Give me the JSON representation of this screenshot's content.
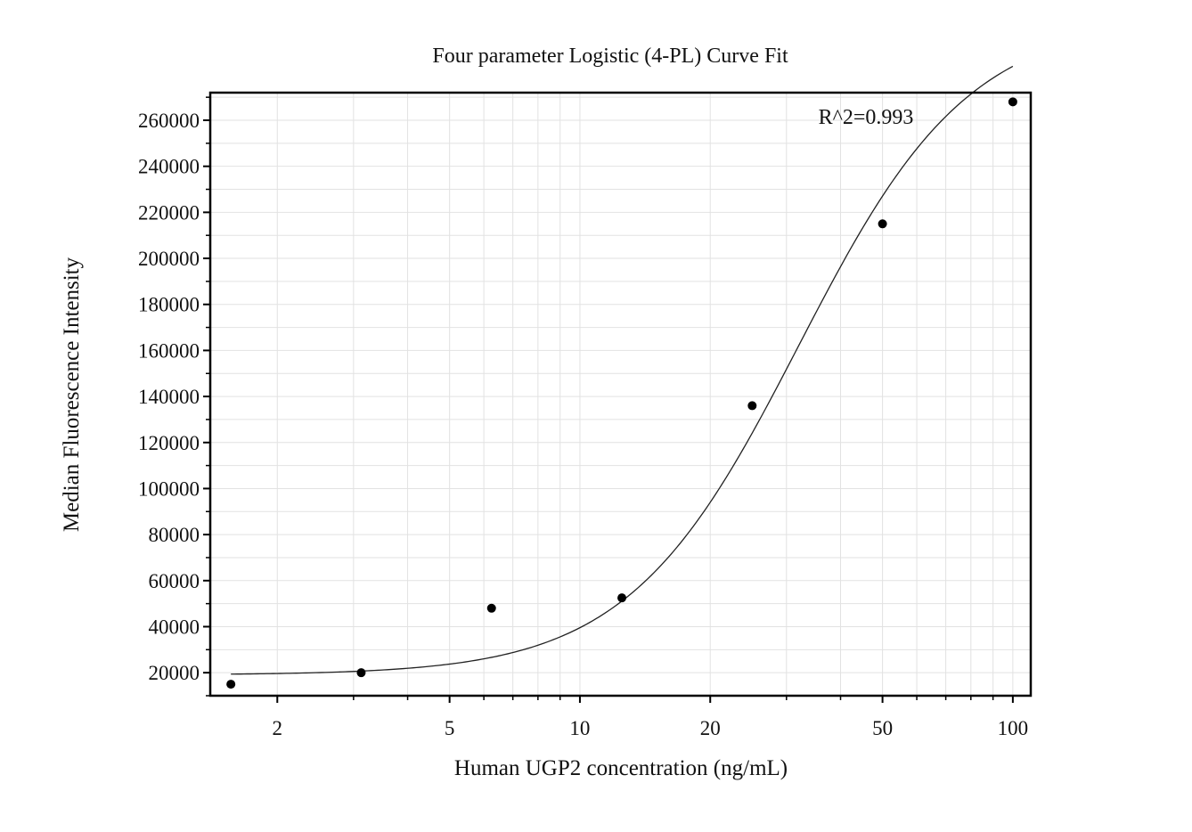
{
  "chart_data": {
    "type": "scatter",
    "title": "Four parameter Logistic (4-PL) Curve Fit",
    "xlabel": "Human UGP2 concentration (ng/mL)",
    "ylabel": "Median Fluorescence Intensity",
    "x_scale": "log",
    "xlim": [
      1.4,
      110
    ],
    "ylim": [
      10000,
      272000
    ],
    "grid": true,
    "x_ticks": [
      2,
      5,
      10,
      20,
      50,
      100
    ],
    "x_tick_labels": [
      "2",
      "5",
      "10",
      "20",
      "50",
      "100"
    ],
    "y_ticks": [
      20000,
      40000,
      60000,
      80000,
      100000,
      120000,
      140000,
      160000,
      180000,
      200000,
      220000,
      240000,
      260000
    ],
    "y_tick_labels": [
      "20000",
      "40000",
      "60000",
      "80000",
      "100000",
      "120000",
      "140000",
      "160000",
      "180000",
      "200000",
      "220000",
      "240000",
      "260000"
    ],
    "points": {
      "x": [
        1.5625,
        3.125,
        6.25,
        12.5,
        25,
        50,
        100
      ],
      "y": [
        15000,
        20000,
        48000,
        52500,
        136000,
        215000,
        268000
      ]
    },
    "fit_curve": {
      "model": "4PL",
      "a": 19000,
      "d": 305000,
      "c": 32,
      "b": 2.2,
      "x_range": [
        1.5625,
        100
      ]
    },
    "annotations": [
      {
        "text": "R^2=0.993",
        "x": 50,
        "y": 260000
      }
    ],
    "colors": {
      "points": "#000000",
      "curve": "#222222",
      "grid": "#e2e2e2",
      "frame": "#000000"
    }
  }
}
